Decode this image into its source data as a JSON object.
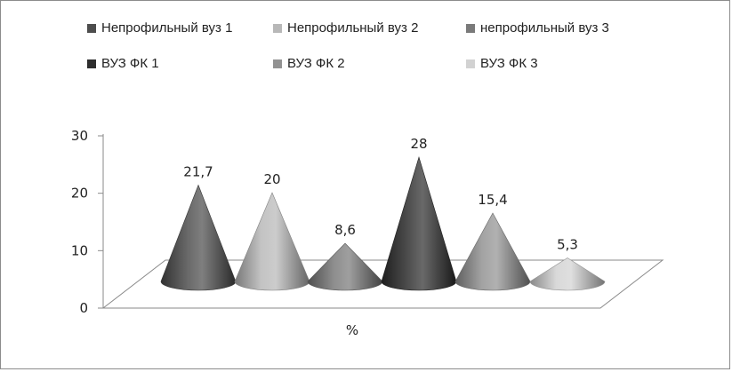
{
  "chart_data": {
    "type": "bar",
    "style": "3d-cone",
    "categories": [
      "Непрофильный вуз  1",
      "Непрофильный вуз 2",
      "непрофильный вуз 3",
      "ВУЗ ФК 1",
      "ВУЗ ФК 2",
      "ВУЗ ФК 3"
    ],
    "values": [
      21.7,
      20,
      8.6,
      28,
      15.4,
      5.3
    ],
    "value_labels": [
      "21,7",
      "20",
      "8,6",
      "28",
      "15,4",
      "5,3"
    ],
    "series_colors": [
      "#4d4d4d",
      "#b8b8b8",
      "#7a7a7a",
      "#2e2e2e",
      "#929292",
      "#d2d2d2"
    ],
    "xlabel": "%",
    "ylim": [
      0,
      30
    ],
    "yticks": [
      0,
      10,
      20,
      30
    ],
    "legend_position": "top",
    "grid": false
  }
}
